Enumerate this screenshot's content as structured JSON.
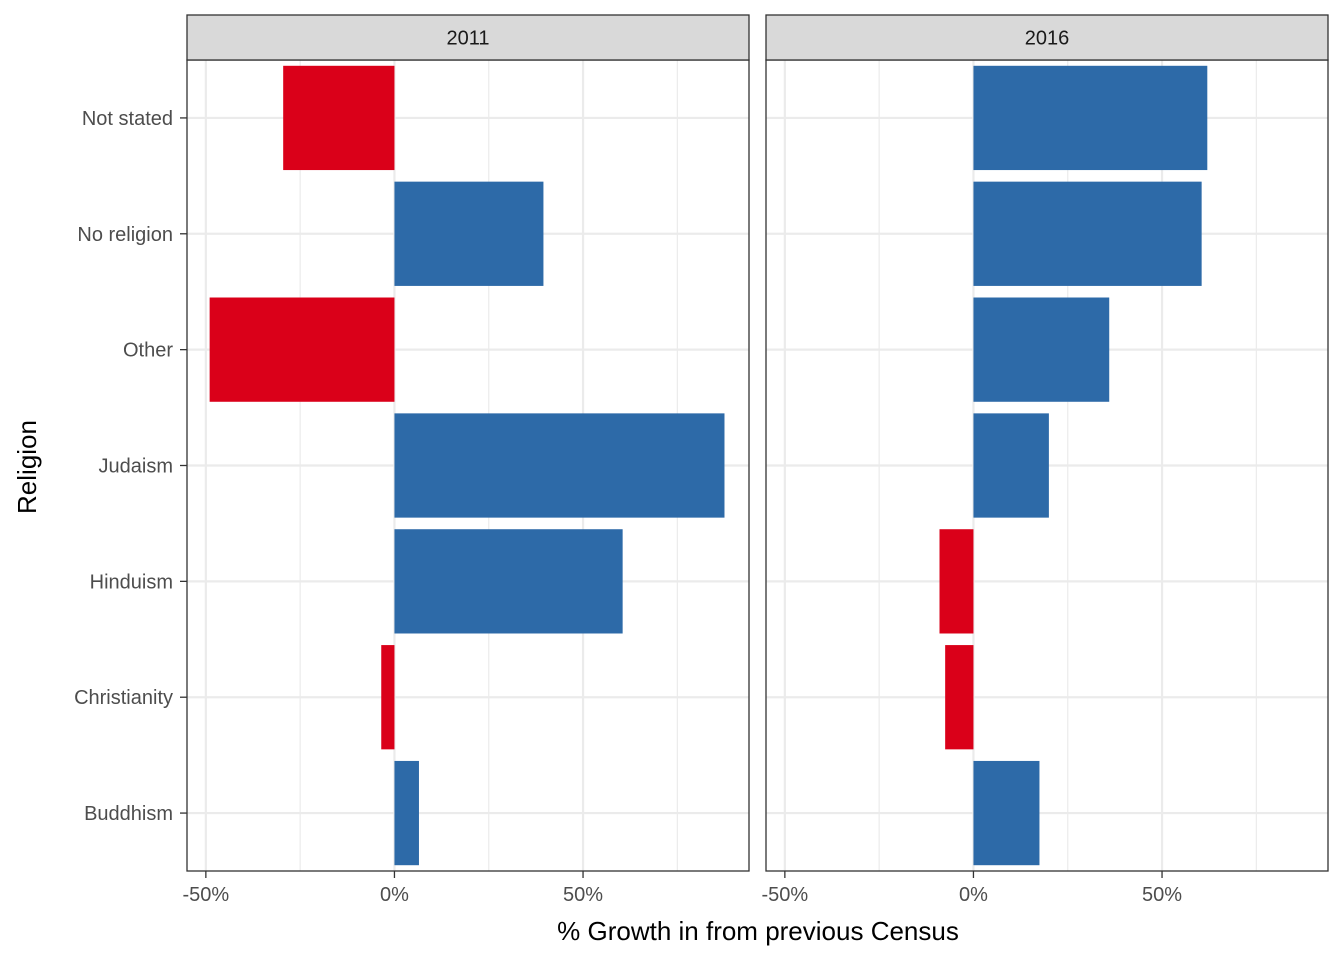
{
  "chart_data": {
    "type": "bar",
    "orientation": "horizontal",
    "title": "",
    "xlabel": "% Growth in from previous Census",
    "ylabel": "Religion",
    "categories": [
      "Not stated",
      "No religion",
      "Other",
      "Judaism",
      "Hinduism",
      "Christianity",
      "Buddhism"
    ],
    "x_ticks": [
      -50,
      0,
      50
    ],
    "x_tick_labels": [
      "-50%",
      "0%",
      "50%"
    ],
    "xlim": [
      -55,
      94
    ],
    "grid": true,
    "legend": "none",
    "colors": {
      "positive": "#2d6aa8",
      "negative": "#da0019"
    },
    "facets": [
      {
        "name": "2011",
        "values": [
          -29.5,
          39.5,
          -49.0,
          87.5,
          60.5,
          -3.5,
          6.5
        ]
      },
      {
        "name": "2016",
        "values": [
          62.0,
          60.5,
          36.0,
          20.0,
          -9.0,
          -7.5,
          17.5
        ]
      }
    ]
  }
}
